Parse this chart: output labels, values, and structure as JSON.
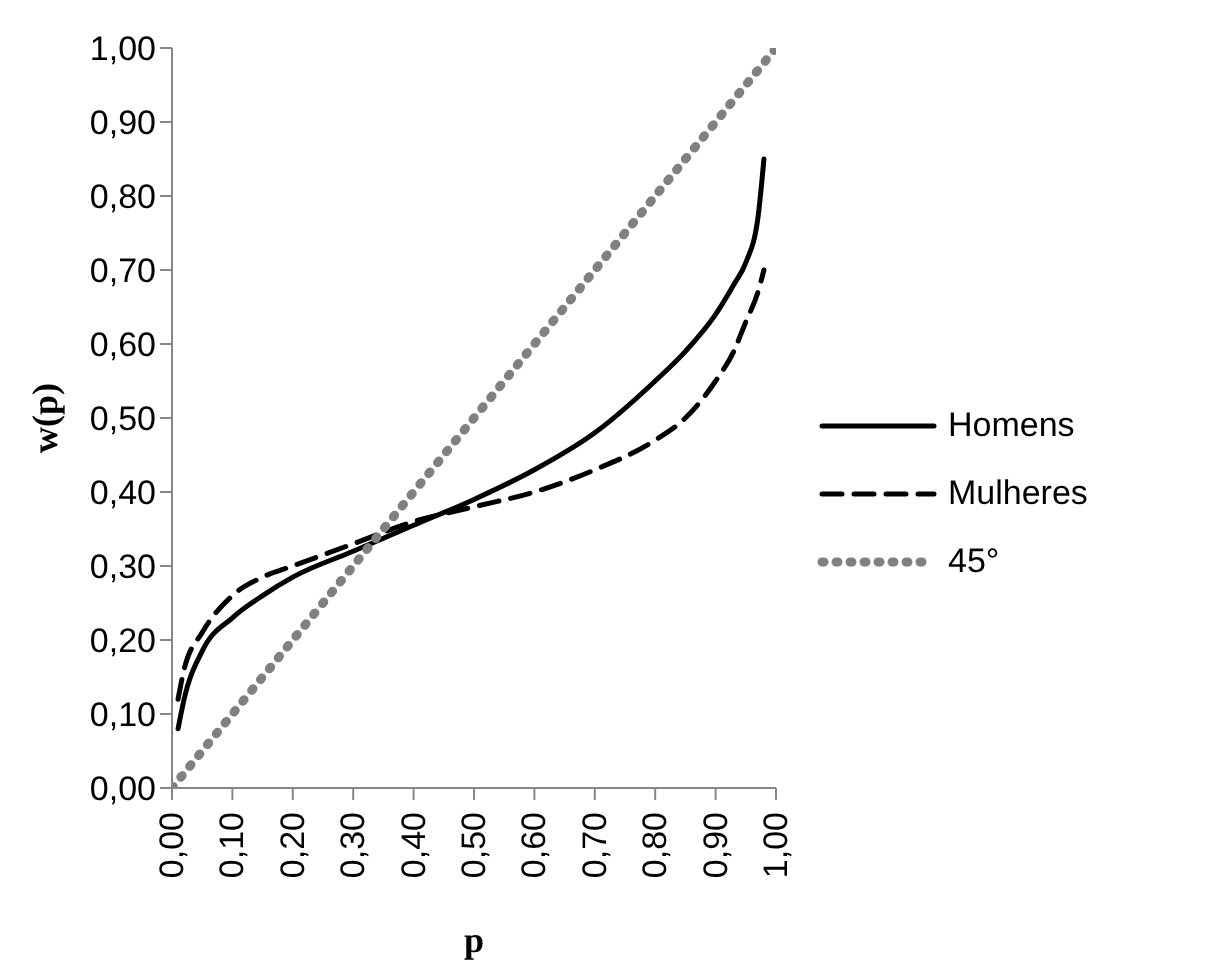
{
  "chart_data": {
    "type": "line",
    "xlabel": "p",
    "ylabel": "w(p)",
    "xlim": [
      0,
      1
    ],
    "ylim": [
      0,
      1
    ],
    "xticks": [
      {
        "value": 0,
        "label": "0,00"
      },
      {
        "value": 0.1,
        "label": "0,10"
      },
      {
        "value": 0.2,
        "label": "0,20"
      },
      {
        "value": 0.3,
        "label": "0,30"
      },
      {
        "value": 0.4,
        "label": "0,40"
      },
      {
        "value": 0.5,
        "label": "0,50"
      },
      {
        "value": 0.6,
        "label": "0,60"
      },
      {
        "value": 0.7,
        "label": "0,70"
      },
      {
        "value": 0.8,
        "label": "0,80"
      },
      {
        "value": 0.9,
        "label": "0,90"
      },
      {
        "value": 1,
        "label": "1,00"
      }
    ],
    "yticks": [
      {
        "value": 0,
        "label": "0,00"
      },
      {
        "value": 0.1,
        "label": "0,10"
      },
      {
        "value": 0.2,
        "label": "0,20"
      },
      {
        "value": 0.3,
        "label": "0,30"
      },
      {
        "value": 0.4,
        "label": "0,40"
      },
      {
        "value": 0.5,
        "label": "0,50"
      },
      {
        "value": 0.6,
        "label": "0,60"
      },
      {
        "value": 0.7,
        "label": "0,70"
      },
      {
        "value": 0.8,
        "label": "0,80"
      },
      {
        "value": 0.9,
        "label": "0,90"
      },
      {
        "value": 1,
        "label": "1,00"
      }
    ],
    "grid": false,
    "legend": "right",
    "marker": "none",
    "series": [
      {
        "name": "Homens",
        "color": "#000000",
        "line_style": "solid",
        "x": [
          0.01,
          0.02,
          0.05,
          0.1,
          0.15,
          0.2,
          0.3,
          0.4,
          0.5,
          0.6,
          0.7,
          0.8,
          0.85,
          0.9,
          0.93,
          0.95,
          0.97,
          0.98
        ],
        "values": [
          0.08,
          0.12,
          0.185,
          0.23,
          0.26,
          0.285,
          0.32,
          0.355,
          0.39,
          0.43,
          0.48,
          0.55,
          0.59,
          0.64,
          0.68,
          0.71,
          0.77,
          0.85
        ]
      },
      {
        "name": "Mulheres",
        "color": "#000000",
        "line_style": "dashed",
        "x": [
          0.01,
          0.02,
          0.05,
          0.1,
          0.15,
          0.2,
          0.3,
          0.4,
          0.5,
          0.6,
          0.7,
          0.8,
          0.85,
          0.9,
          0.93,
          0.95,
          0.97,
          0.98
        ],
        "values": [
          0.12,
          0.16,
          0.21,
          0.26,
          0.285,
          0.3,
          0.33,
          0.36,
          0.38,
          0.4,
          0.43,
          0.47,
          0.5,
          0.55,
          0.59,
          0.63,
          0.67,
          0.7
        ]
      },
      {
        "name": "45°",
        "color": "#808080",
        "line_style": "dotted",
        "x": [
          0,
          1
        ],
        "values": [
          0,
          1
        ]
      }
    ]
  }
}
